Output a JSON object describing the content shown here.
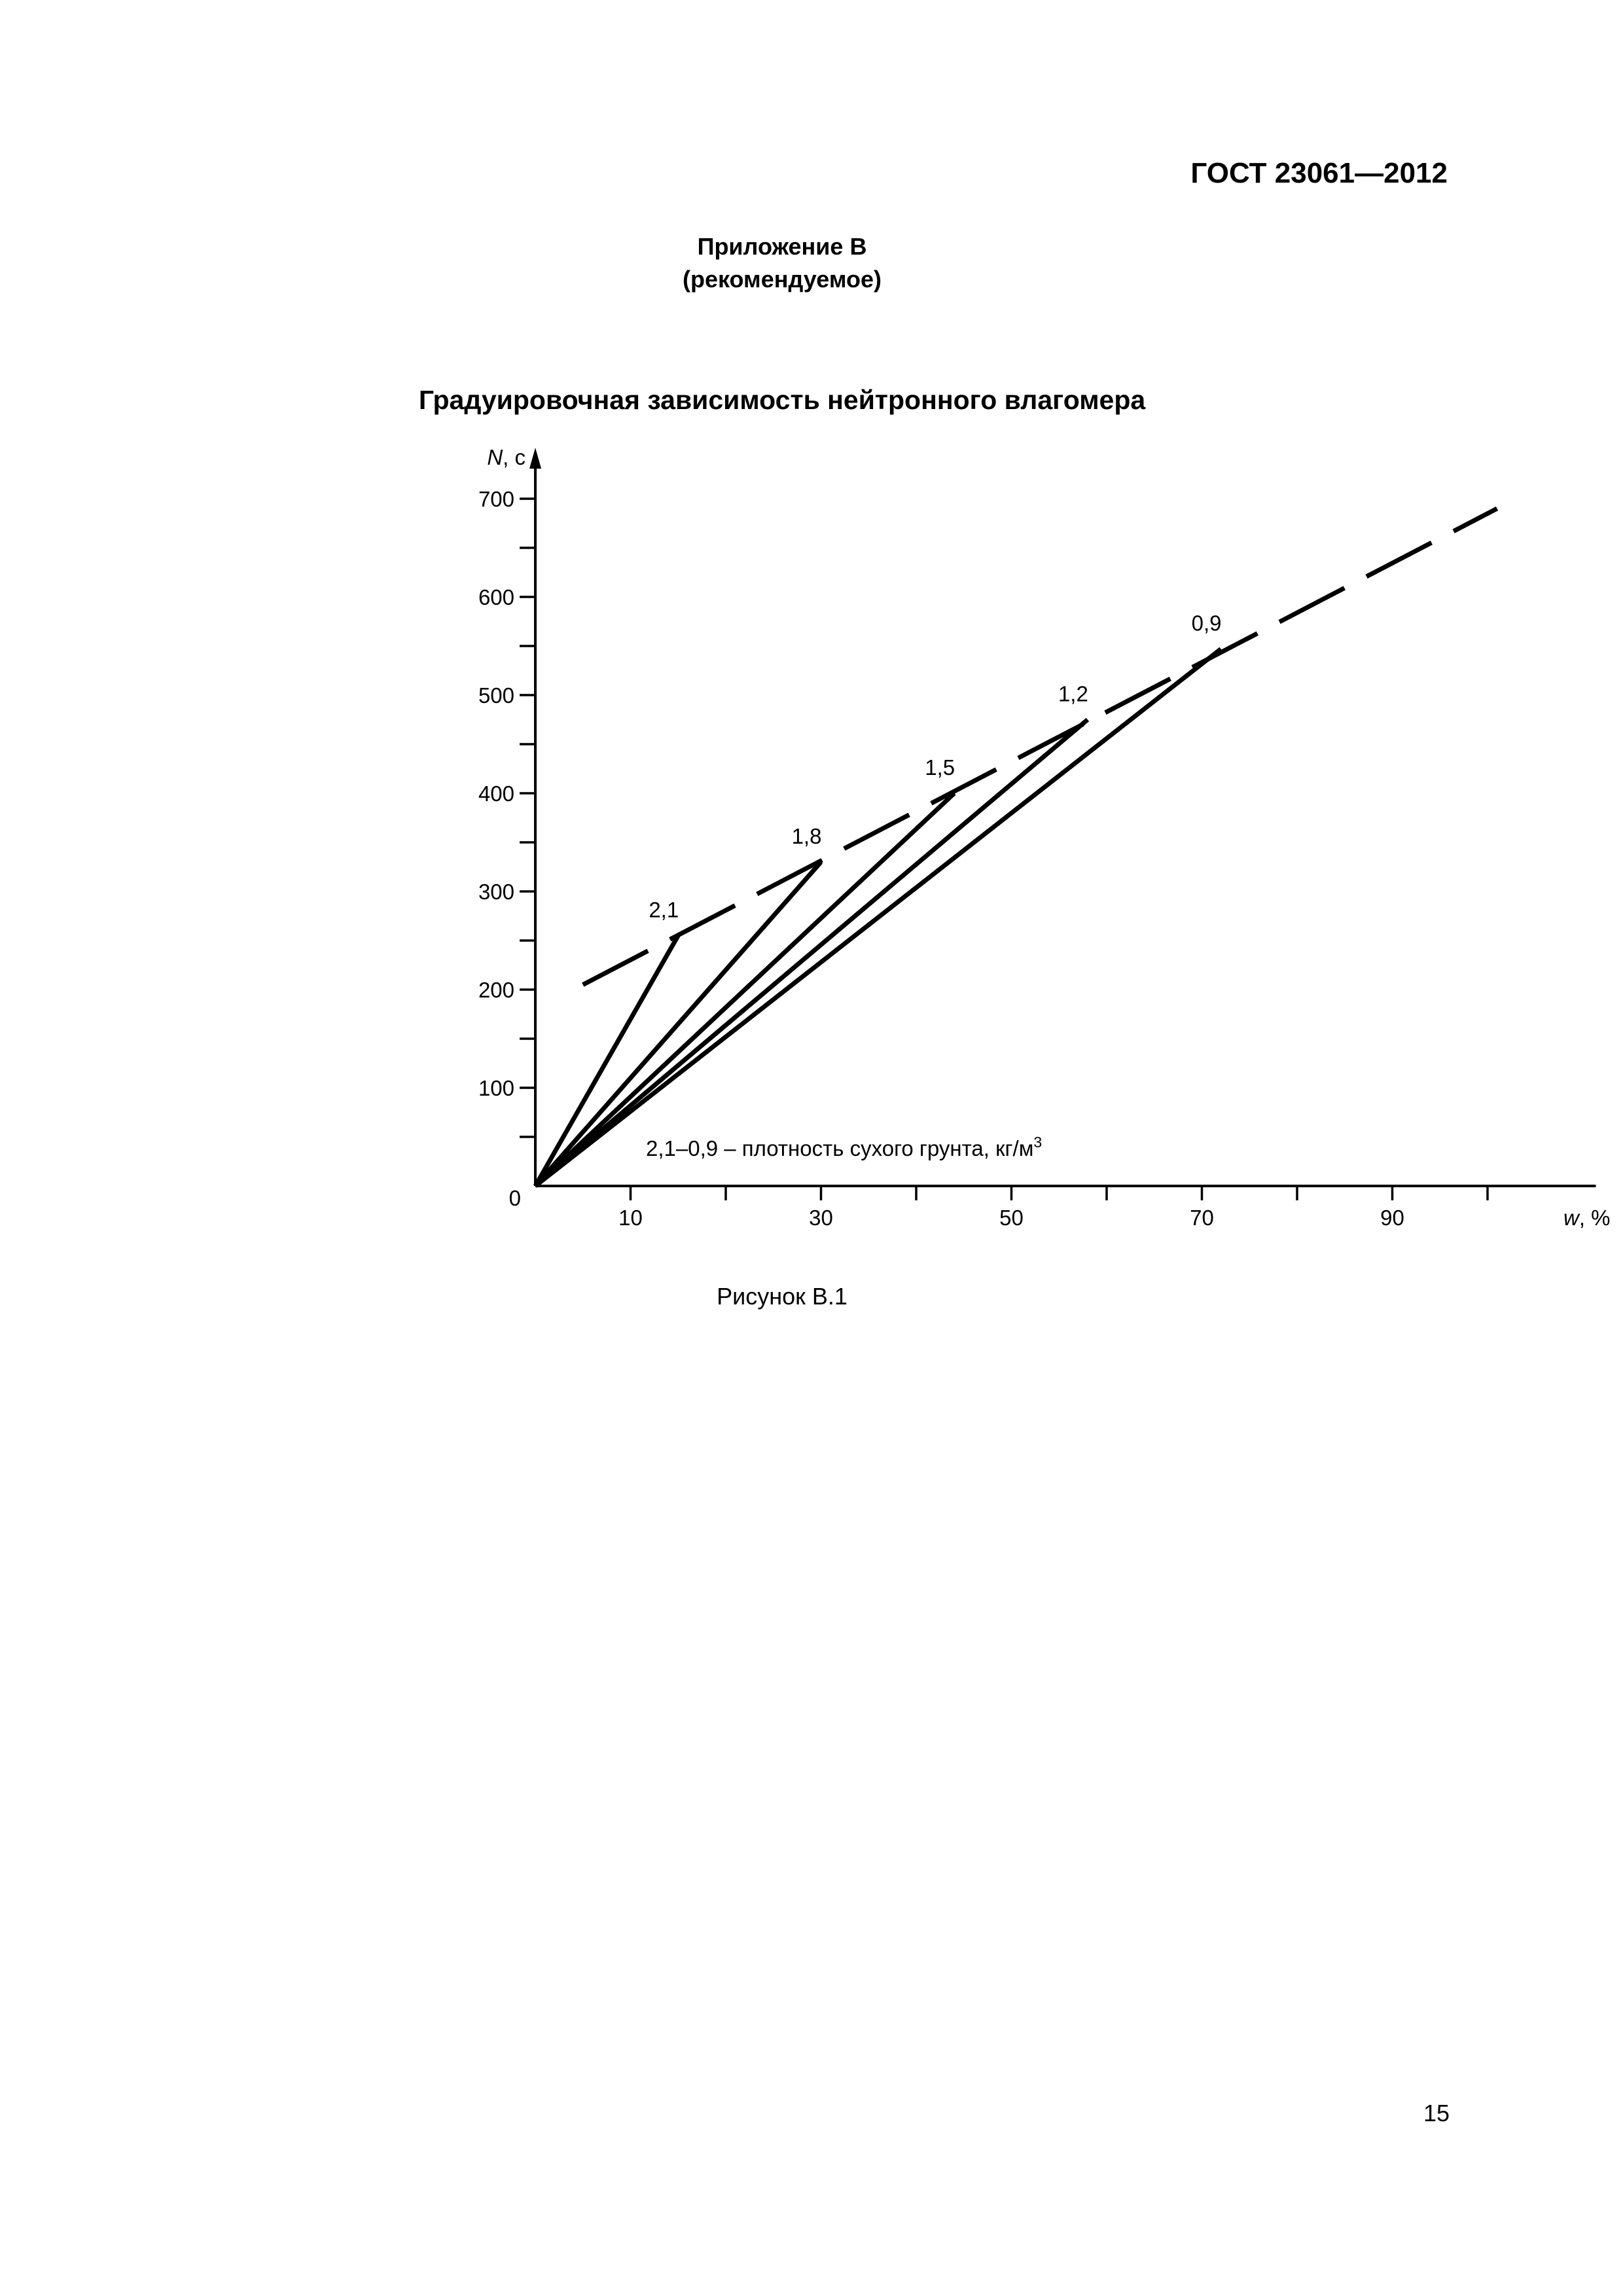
{
  "header": {
    "standard_code": "ГОСТ 23061—2012"
  },
  "appendix": {
    "title": "Приложение В",
    "subtitle": "(рекомендуемое)"
  },
  "figure": {
    "caption": "Рисунок В.1",
    "page_number": "15"
  },
  "chart_data": {
    "type": "line",
    "title": "Градуировочная зависимость нейтронного влагомера",
    "ylabel_var": "N",
    "ylabel_unit": ", с",
    "xlabel_var": "w",
    "xlabel_unit": ", %",
    "origin_label": "0",
    "xlim": [
      0,
      110
    ],
    "ylim": [
      0,
      700
    ],
    "x_ticks": [
      10,
      30,
      50,
      70,
      90
    ],
    "x_minor_ticks": [
      20,
      40,
      60,
      80,
      100
    ],
    "y_ticks": [
      100,
      200,
      300,
      400,
      500,
      600,
      700
    ],
    "y_minor_ticks": [
      50,
      150,
      250,
      350,
      450,
      550,
      650
    ],
    "annotation": "2,1–0,9 – плотность сухого грунта, кг/м",
    "annotation_sup": "3",
    "series": [
      {
        "name": "2,1",
        "points": [
          [
            0,
            0
          ],
          [
            15,
            255
          ]
        ]
      },
      {
        "name": "1,8",
        "points": [
          [
            0,
            0
          ],
          [
            30,
            330
          ]
        ]
      },
      {
        "name": "1,5",
        "points": [
          [
            0,
            0
          ],
          [
            44,
            400
          ]
        ]
      },
      {
        "name": "1,2",
        "points": [
          [
            0,
            0
          ],
          [
            58,
            475
          ]
        ]
      },
      {
        "name": "0,9",
        "points": [
          [
            0,
            0
          ],
          [
            72,
            547
          ]
        ]
      }
    ],
    "envelope": {
      "style": "dashed",
      "points": [
        [
          5,
          205
        ],
        [
          101,
          690
        ]
      ]
    }
  }
}
